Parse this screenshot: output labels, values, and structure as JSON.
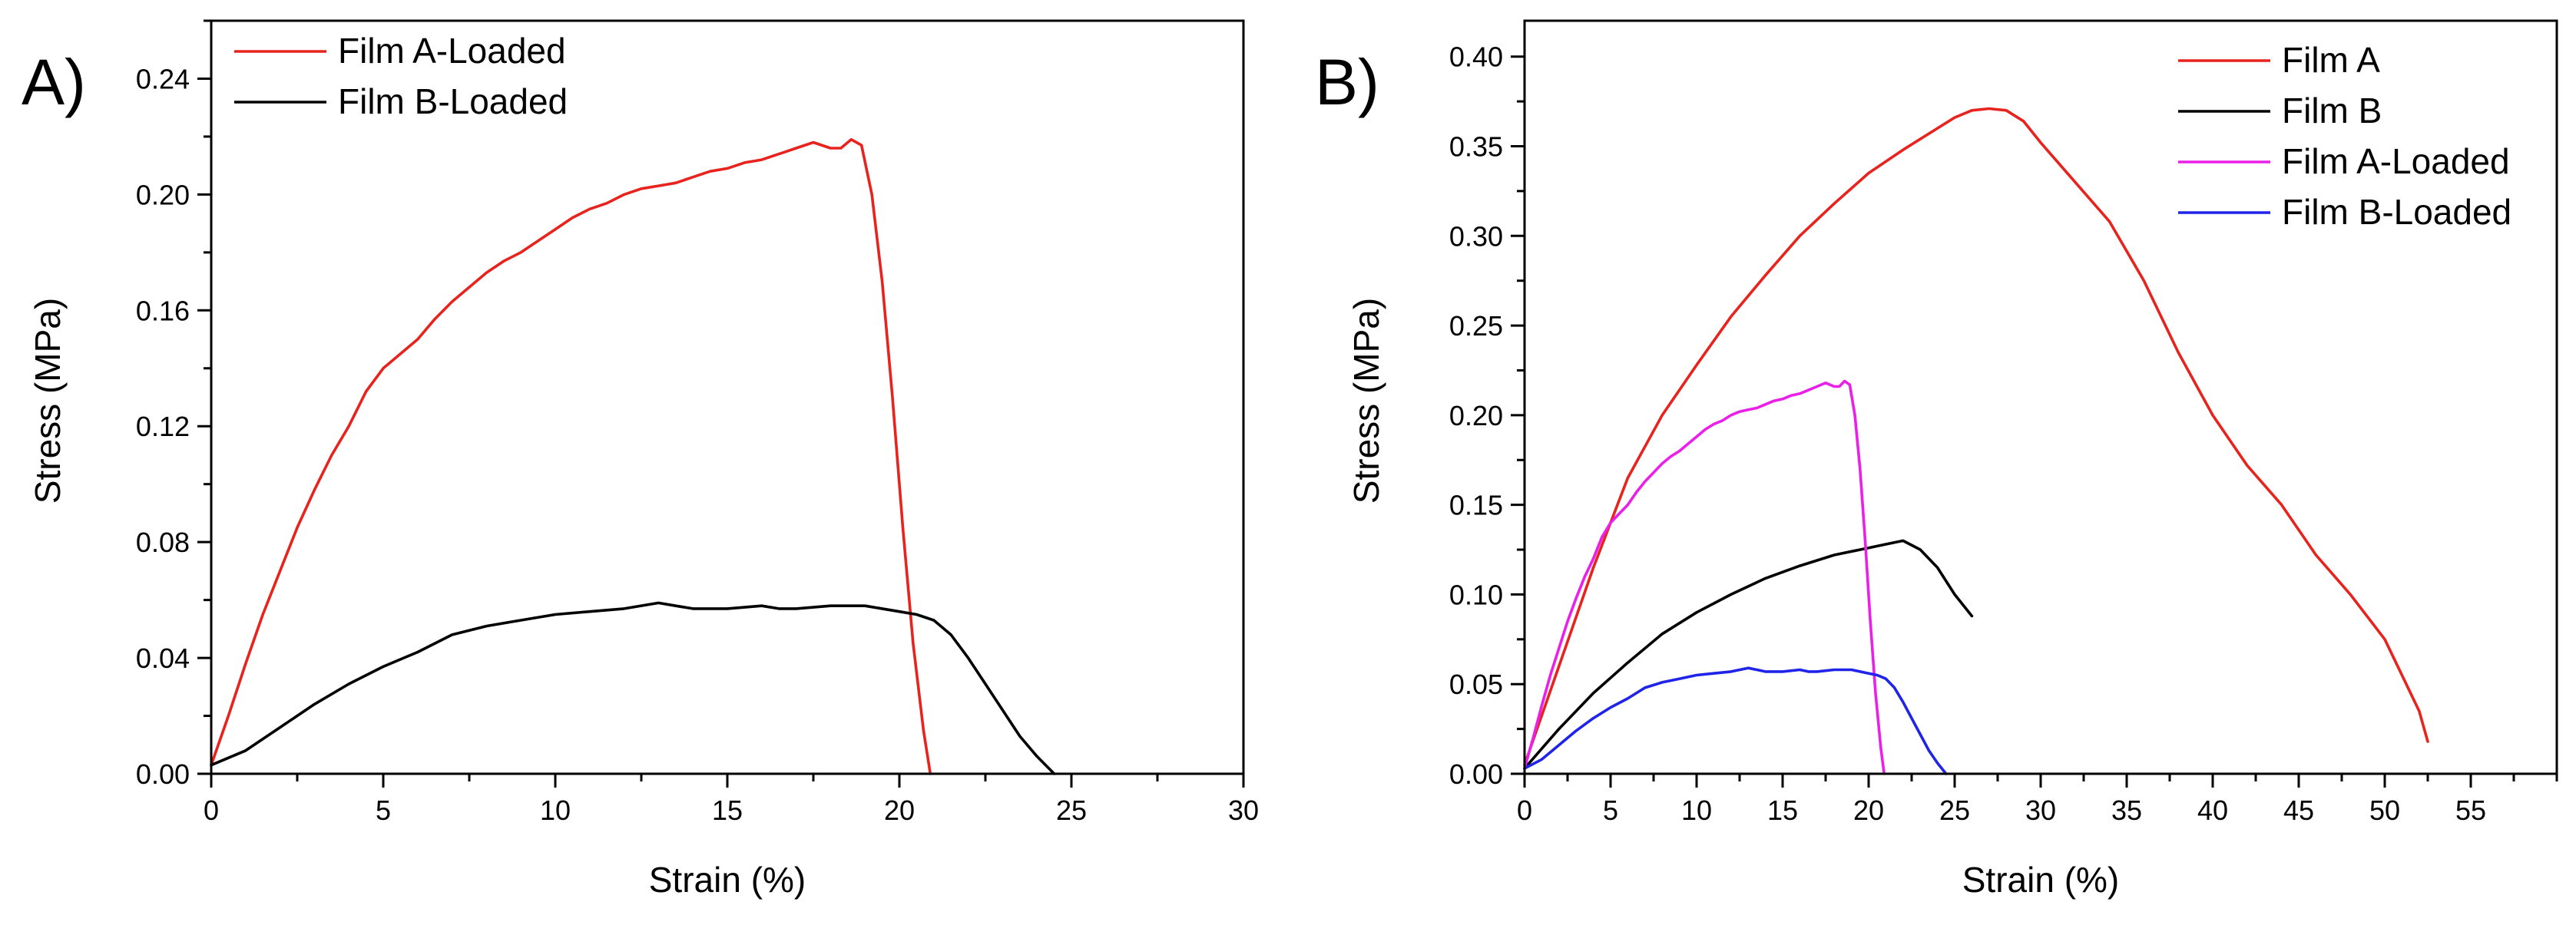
{
  "chart_data": [
    {
      "type": "line",
      "panel_label": "A)",
      "xlabel": "Strain (%)",
      "ylabel": "Stress (MPa)",
      "xlim": [
        0,
        30
      ],
      "ylim": [
        0,
        0.26
      ],
      "xticks": [
        0,
        5,
        10,
        15,
        20,
        25,
        30
      ],
      "xtick_labels": [
        "0",
        "5",
        "10",
        "15",
        "20",
        "25",
        "30"
      ],
      "yticks": [
        0,
        0.04,
        0.08,
        0.12,
        0.16,
        0.2,
        0.24
      ],
      "ytick_labels": [
        "0.00",
        "0.04",
        "0.08",
        "0.12",
        "0.16",
        "0.20",
        "0.24"
      ],
      "legend_position": "top-left",
      "series": [
        {
          "name": "Film A-Loaded",
          "color": "#e8231e",
          "x": [
            0,
            0.5,
            1,
            1.5,
            2,
            2.5,
            3,
            3.5,
            4,
            4.5,
            5,
            5.5,
            6,
            6.5,
            7,
            7.5,
            8,
            8.5,
            9,
            9.5,
            10,
            10.5,
            11,
            11.5,
            12,
            12.5,
            13,
            13.5,
            14,
            14.5,
            15,
            15.5,
            16,
            16.5,
            17,
            17.5,
            18,
            18.3,
            18.6,
            18.9,
            19.2,
            19.5,
            19.8,
            20.1,
            20.4,
            20.7,
            20.9
          ],
          "y": [
            0.003,
            0.02,
            0.038,
            0.055,
            0.07,
            0.085,
            0.098,
            0.11,
            0.12,
            0.132,
            0.14,
            0.145,
            0.15,
            0.157,
            0.163,
            0.168,
            0.173,
            0.177,
            0.18,
            0.184,
            0.188,
            0.192,
            0.195,
            0.197,
            0.2,
            0.202,
            0.203,
            0.204,
            0.206,
            0.208,
            0.209,
            0.211,
            0.212,
            0.214,
            0.216,
            0.218,
            0.216,
            0.216,
            0.219,
            0.217,
            0.2,
            0.17,
            0.13,
            0.085,
            0.045,
            0.015,
            0.0
          ]
        },
        {
          "name": "Film B-Loaded",
          "color": "#000000",
          "x": [
            0,
            1,
            2,
            3,
            4,
            5,
            6,
            7,
            8,
            9,
            10,
            11,
            12,
            13,
            13.5,
            14,
            15,
            16,
            16.5,
            17,
            18,
            19,
            20,
            20.5,
            21,
            21.5,
            22,
            22.5,
            23,
            23.5,
            24,
            24.5
          ],
          "y": [
            0.003,
            0.008,
            0.016,
            0.024,
            0.031,
            0.037,
            0.042,
            0.048,
            0.051,
            0.053,
            0.055,
            0.056,
            0.057,
            0.059,
            0.058,
            0.057,
            0.057,
            0.058,
            0.057,
            0.057,
            0.058,
            0.058,
            0.056,
            0.055,
            0.053,
            0.048,
            0.04,
            0.031,
            0.022,
            0.013,
            0.006,
            0.0
          ]
        }
      ]
    },
    {
      "type": "line",
      "panel_label": "B)",
      "xlabel": "Strain (%)",
      "ylabel": "Stress (MPa)",
      "xlim": [
        0,
        60
      ],
      "ylim": [
        0,
        0.42
      ],
      "xticks": [
        0,
        5,
        10,
        15,
        20,
        25,
        30,
        35,
        40,
        45,
        50,
        55
      ],
      "xtick_labels": [
        "0",
        "5",
        "10",
        "15",
        "20",
        "25",
        "30",
        "35",
        "40",
        "45",
        "50",
        "55"
      ],
      "yticks": [
        0,
        0.05,
        0.1,
        0.15,
        0.2,
        0.25,
        0.3,
        0.35,
        0.4
      ],
      "ytick_labels": [
        "0.00",
        "0.05",
        "0.10",
        "0.15",
        "0.20",
        "0.25",
        "0.30",
        "0.35",
        "0.40"
      ],
      "legend_position": "top-right",
      "series": [
        {
          "name": "Film A",
          "color": "#e8231e",
          "x": [
            0,
            2,
            4,
            6,
            8,
            10,
            12,
            14,
            16,
            18,
            20,
            22,
            24,
            25,
            26,
            27,
            28,
            29,
            30,
            32,
            34,
            36,
            38,
            40,
            42,
            44,
            46,
            48,
            50,
            51,
            52,
            52.5
          ],
          "y": [
            0.005,
            0.06,
            0.115,
            0.165,
            0.2,
            0.228,
            0.255,
            0.278,
            0.3,
            0.318,
            0.335,
            0.348,
            0.36,
            0.366,
            0.37,
            0.371,
            0.37,
            0.364,
            0.352,
            0.33,
            0.308,
            0.275,
            0.235,
            0.2,
            0.172,
            0.15,
            0.122,
            0.1,
            0.075,
            0.055,
            0.035,
            0.018
          ]
        },
        {
          "name": "Film B",
          "color": "#000000",
          "x": [
            0,
            2,
            4,
            6,
            8,
            10,
            12,
            14,
            16,
            18,
            20,
            21,
            22,
            23,
            24,
            25,
            26
          ],
          "y": [
            0.003,
            0.025,
            0.045,
            0.062,
            0.078,
            0.09,
            0.1,
            0.109,
            0.116,
            0.122,
            0.126,
            0.128,
            0.13,
            0.125,
            0.115,
            0.1,
            0.088
          ]
        },
        {
          "name": "Film A-Loaded",
          "color": "#ea1fe8",
          "x": [
            0,
            0.5,
            1,
            1.5,
            2,
            2.5,
            3,
            3.5,
            4,
            4.5,
            5,
            5.5,
            6,
            6.5,
            7,
            7.5,
            8,
            8.5,
            9,
            9.5,
            10,
            10.5,
            11,
            11.5,
            12,
            12.5,
            13,
            13.5,
            14,
            14.5,
            15,
            15.5,
            16,
            16.5,
            17,
            17.5,
            18,
            18.3,
            18.6,
            18.9,
            19.2,
            19.5,
            19.8,
            20.1,
            20.4,
            20.7,
            20.9
          ],
          "y": [
            0.003,
            0.02,
            0.038,
            0.055,
            0.07,
            0.085,
            0.098,
            0.11,
            0.12,
            0.132,
            0.14,
            0.145,
            0.15,
            0.157,
            0.163,
            0.168,
            0.173,
            0.177,
            0.18,
            0.184,
            0.188,
            0.192,
            0.195,
            0.197,
            0.2,
            0.202,
            0.203,
            0.204,
            0.206,
            0.208,
            0.209,
            0.211,
            0.212,
            0.214,
            0.216,
            0.218,
            0.216,
            0.216,
            0.219,
            0.217,
            0.2,
            0.17,
            0.13,
            0.085,
            0.045,
            0.015,
            0.0
          ]
        },
        {
          "name": "Film B-Loaded",
          "color": "#1f24e8",
          "x": [
            0,
            1,
            2,
            3,
            4,
            5,
            6,
            7,
            8,
            9,
            10,
            11,
            12,
            13,
            13.5,
            14,
            15,
            16,
            16.5,
            17,
            18,
            19,
            20,
            20.5,
            21,
            21.5,
            22,
            22.5,
            23,
            23.5,
            24,
            24.5
          ],
          "y": [
            0.003,
            0.008,
            0.016,
            0.024,
            0.031,
            0.037,
            0.042,
            0.048,
            0.051,
            0.053,
            0.055,
            0.056,
            0.057,
            0.059,
            0.058,
            0.057,
            0.057,
            0.058,
            0.057,
            0.057,
            0.058,
            0.058,
            0.056,
            0.055,
            0.053,
            0.048,
            0.04,
            0.031,
            0.022,
            0.013,
            0.006,
            0.0
          ]
        }
      ]
    }
  ]
}
